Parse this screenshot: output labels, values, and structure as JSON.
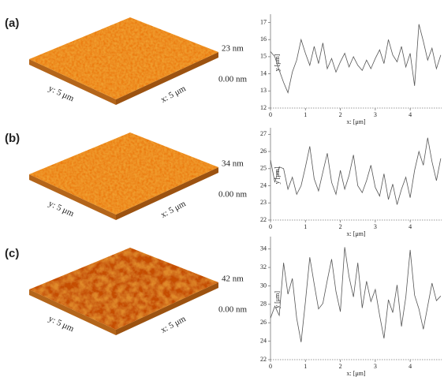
{
  "afm_panels": [
    {
      "label": "(a)",
      "z_max": "23 nm",
      "z_min": "0.00 nm",
      "x_size": "x: 5 μm",
      "y_size": "y: 5 μm"
    },
    {
      "label": "(b)",
      "z_max": "34 nm",
      "z_min": "0.00 nm",
      "x_size": "x: 5 μm",
      "y_size": "y: 5 μm"
    },
    {
      "label": "(c)",
      "z_max": "42 nm",
      "z_min": "0.00 nm",
      "x_size": "x: 5 μm",
      "y_size": "y: 5 μm"
    }
  ],
  "chart_data": [
    {
      "type": "line",
      "x_label": "x: [μm]",
      "y_label": "y [μm]",
      "color": "#555555",
      "x": [
        0,
        0.125,
        0.25,
        0.375,
        0.5,
        0.625,
        0.75,
        0.875,
        1,
        1.125,
        1.25,
        1.375,
        1.5,
        1.625,
        1.75,
        1.875,
        2,
        2.125,
        2.25,
        2.375,
        2.5,
        2.625,
        2.75,
        2.875,
        3,
        3.125,
        3.25,
        3.375,
        3.5,
        3.625,
        3.75,
        3.875,
        4,
        4.125,
        4.25,
        4.375,
        4.5,
        4.625,
        4.75,
        4.875
      ],
      "values": [
        15.3,
        15.0,
        14.2,
        13.5,
        12.9,
        14.1,
        14.8,
        16.0,
        15.2,
        14.5,
        15.6,
        14.6,
        15.8,
        14.3,
        14.9,
        14.1,
        14.7,
        15.2,
        14.4,
        15.0,
        14.5,
        14.2,
        14.8,
        14.3,
        14.9,
        15.4,
        14.6,
        16.0,
        15.1,
        14.7,
        15.6,
        14.4,
        15.2,
        13.3,
        16.9,
        15.9,
        14.8,
        15.5,
        14.3,
        15.1
      ],
      "xlim": [
        0,
        4.9
      ],
      "xticks": [
        0,
        1,
        2,
        3,
        4
      ],
      "ylim": [
        12,
        17.3
      ],
      "yticks": [
        12,
        13,
        14,
        15,
        16,
        17
      ]
    },
    {
      "type": "line",
      "x_label": "x: [μm]",
      "y_label": "y [μm]",
      "color": "#555555",
      "x": [
        0,
        0.125,
        0.25,
        0.375,
        0.5,
        0.625,
        0.75,
        0.875,
        1,
        1.125,
        1.25,
        1.375,
        1.5,
        1.625,
        1.75,
        1.875,
        2,
        2.125,
        2.25,
        2.375,
        2.5,
        2.625,
        2.75,
        2.875,
        3,
        3.125,
        3.25,
        3.375,
        3.5,
        3.625,
        3.75,
        3.875,
        4,
        4.125,
        4.25,
        4.375,
        4.5,
        4.625,
        4.75,
        4.875
      ],
      "values": [
        25.5,
        24.2,
        25.1,
        25.0,
        23.8,
        24.5,
        23.5,
        24.0,
        25.1,
        26.3,
        24.4,
        23.7,
        24.8,
        25.9,
        24.2,
        23.5,
        24.9,
        23.8,
        24.6,
        25.8,
        24.0,
        23.6,
        24.3,
        25.2,
        23.9,
        23.4,
        24.7,
        23.2,
        24.1,
        22.9,
        23.8,
        24.5,
        23.3,
        24.9,
        26.0,
        25.2,
        26.8,
        25.4,
        24.3,
        25.6
      ],
      "xlim": [
        0,
        4.9
      ],
      "xticks": [
        0,
        1,
        2,
        3,
        4
      ],
      "ylim": [
        22,
        27.2
      ],
      "yticks": [
        22,
        23,
        24,
        25,
        26,
        27
      ]
    },
    {
      "type": "line",
      "x_label": "x: [μm]",
      "y_label": "y [μm]",
      "color": "#555555",
      "x": [
        0,
        0.125,
        0.25,
        0.375,
        0.5,
        0.625,
        0.75,
        0.875,
        1,
        1.125,
        1.25,
        1.375,
        1.5,
        1.625,
        1.75,
        1.875,
        2,
        2.125,
        2.25,
        2.375,
        2.5,
        2.625,
        2.75,
        2.875,
        3,
        3.125,
        3.25,
        3.375,
        3.5,
        3.625,
        3.75,
        3.875,
        4,
        4.125,
        4.25,
        4.375,
        4.5,
        4.625,
        4.75,
        4.875
      ],
      "values": [
        26.5,
        27.8,
        26.8,
        32.5,
        29.1,
        30.8,
        26.5,
        23.9,
        28.3,
        33.1,
        30.2,
        27.5,
        28.1,
        30.6,
        32.9,
        29.4,
        27.2,
        34.2,
        31.0,
        28.8,
        32.5,
        27.6,
        30.5,
        28.3,
        29.6,
        26.8,
        24.3,
        28.5,
        27.1,
        30.1,
        25.6,
        28.8,
        33.9,
        29.0,
        27.5,
        25.3,
        27.8,
        30.3,
        28.4,
        28.9
      ],
      "xlim": [
        0,
        4.9
      ],
      "xticks": [
        0,
        1,
        2,
        3,
        4
      ],
      "ylim": [
        22,
        35
      ],
      "yticks": [
        22,
        24,
        26,
        28,
        30,
        32,
        34
      ]
    }
  ]
}
